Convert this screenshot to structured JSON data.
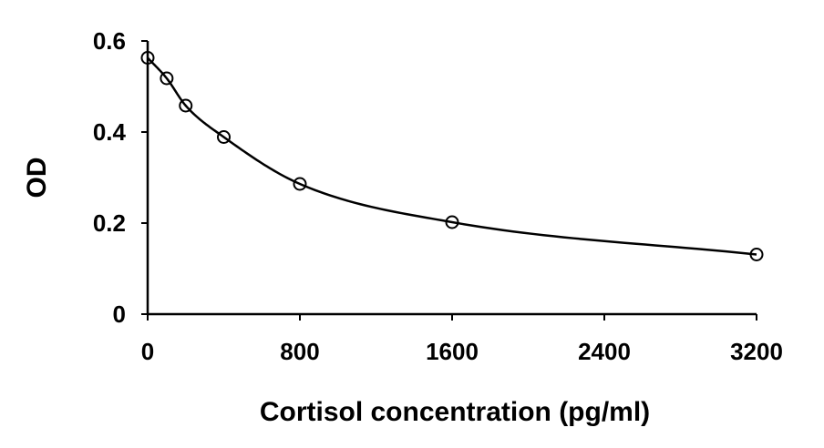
{
  "chart_data": {
    "type": "scatter",
    "title": "",
    "xlabel": "Cortisol concentration (pg/ml)",
    "ylabel": "OD",
    "xlim": [
      0,
      3200
    ],
    "ylim": [
      0,
      0.6
    ],
    "x_ticks": [
      0,
      800,
      1600,
      2400,
      3200
    ],
    "x_tick_labels": [
      "0",
      "800",
      "1600",
      "2400",
      "3200"
    ],
    "y_ticks": [
      0,
      0.2,
      0.4,
      0.6
    ],
    "y_tick_labels": [
      "0",
      "0.2",
      "0.4",
      "0.6"
    ],
    "grid": false,
    "legend": "none",
    "marker": "open-circle",
    "fitted_curve": true,
    "series": [
      {
        "x": [
          0,
          100,
          200,
          400,
          800,
          1600,
          3200
        ],
        "y": [
          0.563,
          0.518,
          0.458,
          0.389,
          0.286,
          0.202,
          0.131
        ]
      }
    ]
  }
}
